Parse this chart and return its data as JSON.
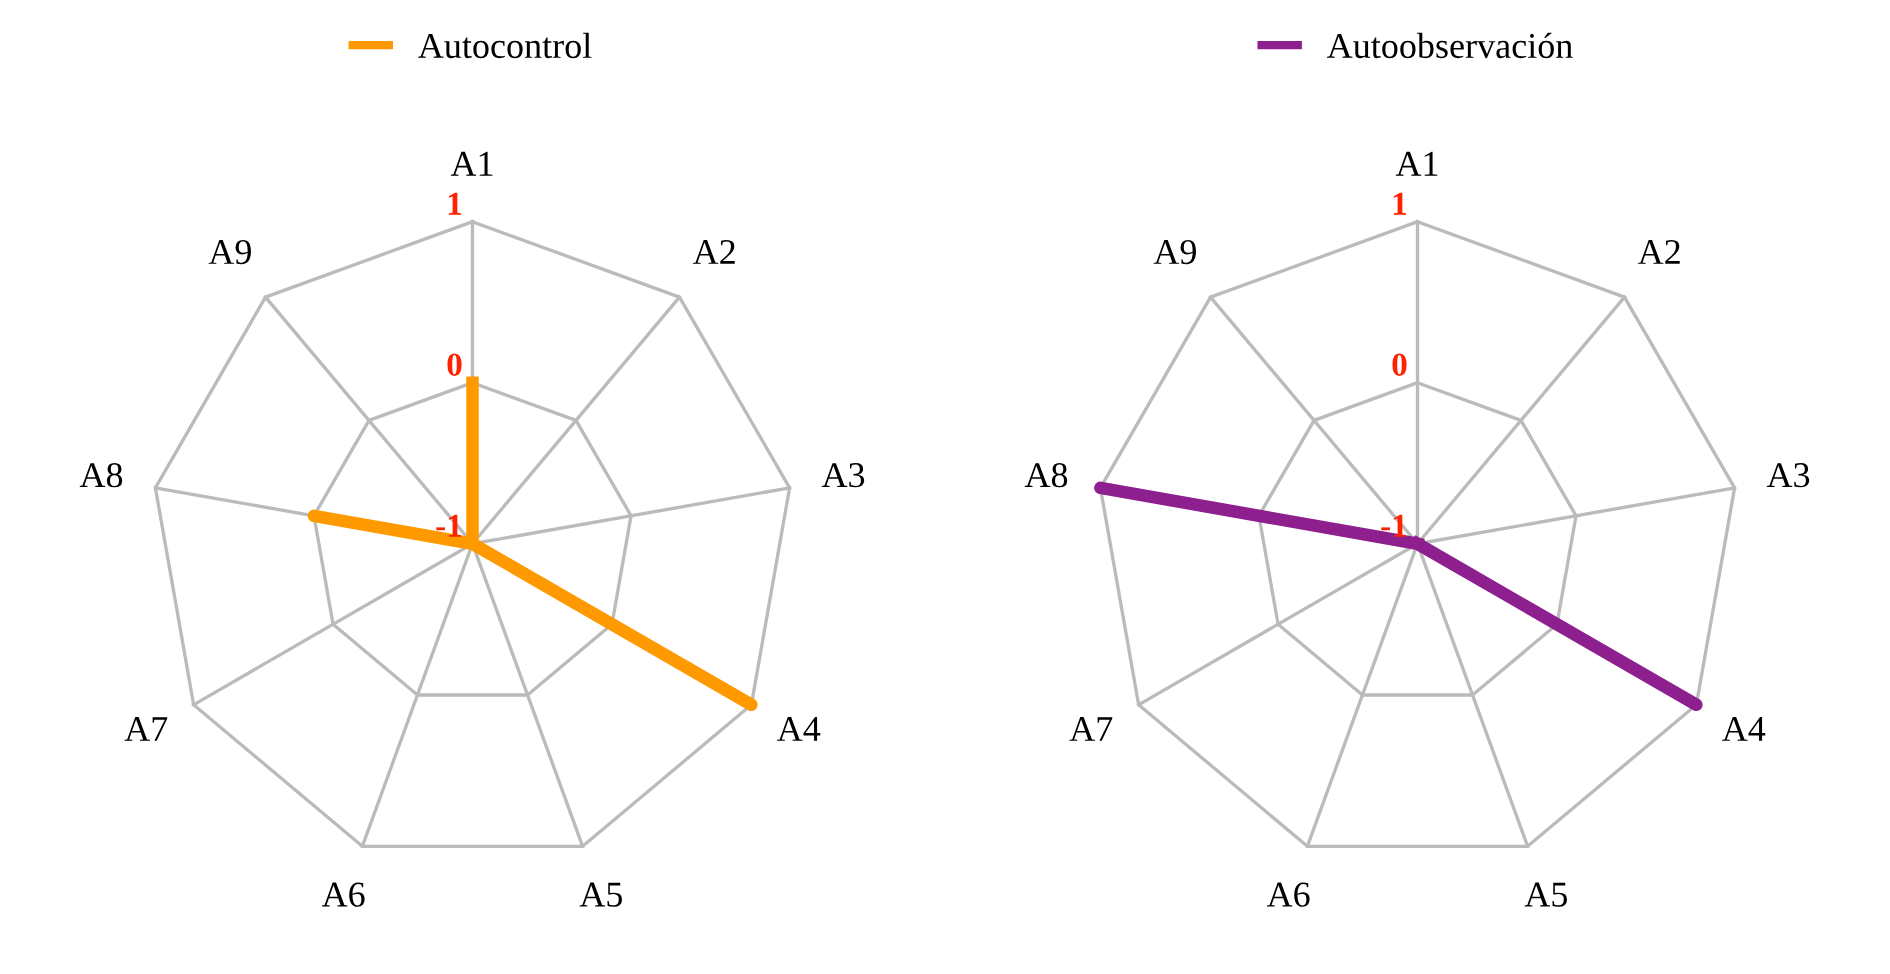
{
  "chart_data": [
    {
      "type": "radar",
      "categories": [
        "A1",
        "A2",
        "A3",
        "A4",
        "A5",
        "A6",
        "A7",
        "A8",
        "A9"
      ],
      "series": [
        {
          "name": "Autocontrol",
          "color": "#ff9900",
          "values": [
            0,
            -1,
            -1,
            1,
            -1,
            -1,
            -1,
            0,
            -1
          ]
        }
      ],
      "ylim": [
        -1,
        1
      ],
      "yticks": [
        -1,
        0,
        1
      ],
      "grid": true,
      "legend": "top"
    },
    {
      "type": "radar",
      "categories": [
        "A1",
        "A2",
        "A3",
        "A4",
        "A5",
        "A6",
        "A7",
        "A8",
        "A9"
      ],
      "series": [
        {
          "name": "Autoobservación",
          "color": "#8e1f8e",
          "values": [
            -1,
            -1,
            -1,
            1,
            -1,
            -1,
            -1,
            1,
            -1
          ]
        }
      ],
      "ylim": [
        -1,
        1
      ],
      "yticks": [
        -1,
        0,
        1
      ],
      "grid": true,
      "legend": "top"
    }
  ]
}
